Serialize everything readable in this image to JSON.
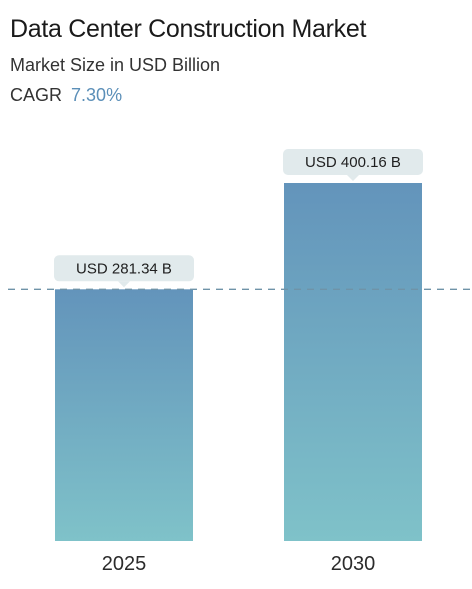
{
  "header": {
    "title": "Data Center Construction Market",
    "subtitle": "Market Size in USD Billion",
    "cagr_label": "CAGR",
    "cagr_value": "7.30%"
  },
  "colors": {
    "bar_top": "#6394bb",
    "bar_bottom": "#7fc2c9",
    "label_bg": "#e1eaec",
    "reference_line": "#6f93a8",
    "cagr_accent": "#5b8fb8"
  },
  "chart_data": {
    "type": "bar",
    "categories": [
      "2025",
      "2030"
    ],
    "values": [
      281.34,
      400.16
    ],
    "data_labels": [
      "USD 281.34 B",
      "USD 400.16 B"
    ],
    "unit": "USD Billion",
    "grid": false,
    "reference_line": 281.34
  }
}
